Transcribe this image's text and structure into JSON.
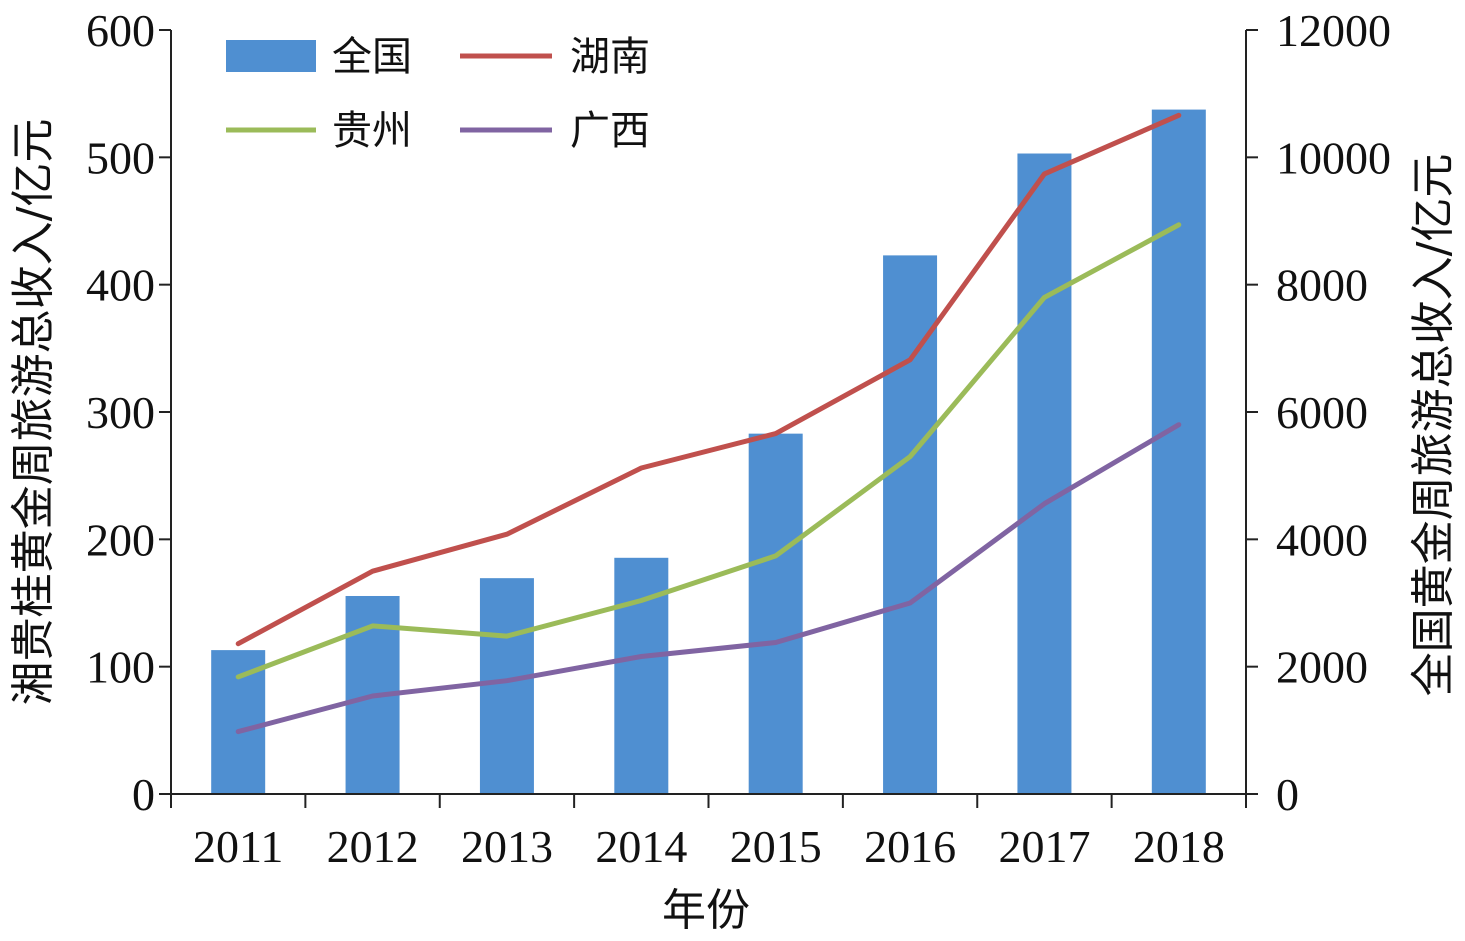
{
  "chart_data": {
    "type": "bar",
    "categories": [
      "2011",
      "2012",
      "2013",
      "2014",
      "2015",
      "2016",
      "2017",
      "2018"
    ],
    "xlabel": "年份",
    "ylabel_left": "湘贵桂黄金周旅游总收入/亿元",
    "ylabel_right": "全国黄金周旅游总收入/亿元",
    "ylim_left": [
      0,
      600
    ],
    "ylim_right": [
      0,
      12000
    ],
    "yticks_left": [
      "0",
      "100",
      "200",
      "300",
      "400",
      "500",
      "600"
    ],
    "yticks_right": [
      "0",
      "2000",
      "4000",
      "6000",
      "8000",
      "10000",
      "12000"
    ],
    "legend_position": "top-left",
    "grid": false,
    "series": [
      {
        "name": "全国",
        "kind": "bar",
        "axis": "right",
        "color": "#4F8FD1",
        "values": [
          2260,
          3110,
          3390,
          3710,
          5660,
          8460,
          10060,
          10750
        ]
      },
      {
        "name": "湖南",
        "kind": "line",
        "axis": "left",
        "color": "#C0504D",
        "values": [
          118,
          175,
          204,
          256,
          283,
          341,
          487,
          533
        ]
      },
      {
        "name": "贵州",
        "kind": "line",
        "axis": "left",
        "color": "#9BBB59",
        "values": [
          92,
          132,
          124,
          152,
          187,
          265,
          390,
          447
        ]
      },
      {
        "name": "广西",
        "kind": "line",
        "axis": "left",
        "color": "#8064A2",
        "values": [
          49,
          77,
          89,
          108,
          119,
          150,
          228,
          290
        ]
      }
    ]
  }
}
